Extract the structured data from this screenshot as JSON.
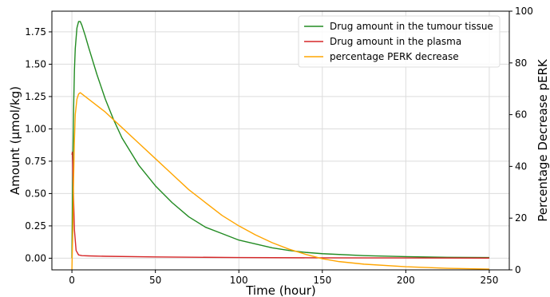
{
  "chart_data": {
    "type": "line",
    "xlabel": "Time (hour)",
    "ylabel": "Amount (μmol/kg)",
    "y2label": "Percentage Decrease pERK",
    "xlim": [
      -12,
      262
    ],
    "ylim": [
      -0.09,
      1.91
    ],
    "y2lim": [
      0,
      100
    ],
    "xticks": [
      0,
      50,
      100,
      150,
      200,
      250
    ],
    "yticks": [
      0.0,
      0.25,
      0.5,
      0.75,
      1.0,
      1.25,
      1.5,
      1.75
    ],
    "y2ticks": [
      0,
      20,
      40,
      60,
      80,
      100
    ],
    "xtick_labels": [
      "0",
      "50",
      "100",
      "150",
      "200",
      "250"
    ],
    "ytick_labels": [
      "0.00",
      "0.25",
      "0.50",
      "0.75",
      "1.00",
      "1.25",
      "1.50",
      "1.75"
    ],
    "y2tick_labels": [
      "0",
      "20",
      "40",
      "60",
      "80",
      "100"
    ],
    "grid": true,
    "legend_position": "top-right",
    "series": [
      {
        "name": "Drug amount in the tumour tissue",
        "color": "#228b22",
        "axis": "left",
        "x": [
          0,
          0.5,
          1,
          1.5,
          2,
          3,
          4,
          5,
          6,
          8,
          10,
          15,
          20,
          25,
          30,
          40,
          50,
          60,
          70,
          80,
          90,
          100,
          110,
          120,
          130,
          140,
          150,
          175,
          200,
          225,
          250
        ],
        "y": [
          0.0,
          0.7,
          1.15,
          1.45,
          1.62,
          1.78,
          1.83,
          1.83,
          1.8,
          1.72,
          1.63,
          1.42,
          1.23,
          1.07,
          0.93,
          0.72,
          0.56,
          0.43,
          0.32,
          0.24,
          0.19,
          0.14,
          0.11,
          0.08,
          0.06,
          0.045,
          0.035,
          0.02,
          0.012,
          0.007,
          0.005
        ]
      },
      {
        "name": "Drug amount in the plasma",
        "color": "#d62728",
        "axis": "left",
        "x": [
          0,
          0.3,
          0.8,
          1.5,
          2.5,
          4,
          6,
          10,
          20,
          50,
          100,
          150,
          200,
          250
        ],
        "y": [
          0.8,
          0.82,
          0.55,
          0.22,
          0.06,
          0.025,
          0.02,
          0.018,
          0.015,
          0.01,
          0.005,
          0.003,
          0.002,
          0.001
        ]
      },
      {
        "name": "percentage PERK decrease",
        "color": "#ffa500",
        "axis": "right",
        "x": [
          0,
          0.5,
          1,
          1.5,
          2,
          3,
          4,
          5,
          6,
          8,
          10,
          20,
          30,
          40,
          50,
          60,
          70,
          80,
          90,
          100,
          110,
          120,
          130,
          140,
          150,
          160,
          175,
          200,
          225,
          250
        ],
        "y": [
          0,
          15,
          35,
          50,
          60,
          66,
          68,
          68.5,
          68,
          67,
          66,
          61,
          55,
          49,
          43,
          37,
          31,
          26,
          21,
          17,
          13.5,
          10.5,
          8,
          6,
          4.3,
          3.2,
          2.2,
          1.2,
          0.6,
          0.3
        ]
      }
    ]
  }
}
